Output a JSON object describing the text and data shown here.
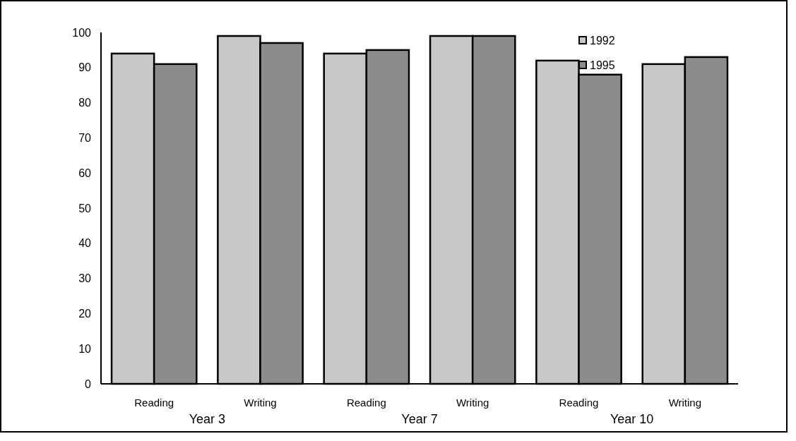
{
  "chart_data": {
    "type": "bar",
    "categories": [
      "Reading",
      "Writing",
      "Reading",
      "Writing",
      "Reading",
      "Writing"
    ],
    "series": [
      {
        "name": "1992",
        "color": "#c8c8c8",
        "values": [
          94,
          99,
          94,
          99,
          92,
          91
        ]
      },
      {
        "name": "1995",
        "color": "#8c8c8c",
        "values": [
          91,
          97,
          95,
          99,
          88,
          93
        ]
      }
    ],
    "annotations": [
      "Year 3",
      "Year 7",
      "Year 10"
    ],
    "ylim": [
      0,
      100
    ],
    "yticks": [
      0,
      10,
      20,
      30,
      40,
      50,
      60,
      70,
      80,
      90,
      100
    ],
    "grid": false,
    "legend": "top right"
  }
}
